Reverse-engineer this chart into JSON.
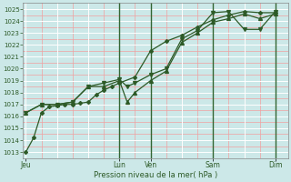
{
  "xlabel": "Pression niveau de la mer( hPa )",
  "bg_color": "#cce8e8",
  "grid_major_color": "#ffffff",
  "grid_minor_color": "#f0a0a0",
  "line_color": "#2d5a27",
  "sep_color": "#336633",
  "ylim": [
    1012.5,
    1025.5
  ],
  "yticks": [
    1013,
    1014,
    1015,
    1016,
    1017,
    1018,
    1019,
    1020,
    1021,
    1022,
    1023,
    1024,
    1025
  ],
  "day_labels": [
    "Jeu",
    "",
    "",
    "Lun",
    "Ven",
    "",
    "Sam",
    "",
    "Dim"
  ],
  "day_positions": [
    0.0,
    1.0,
    2.0,
    3.0,
    4.0,
    5.0,
    6.0,
    7.0,
    8.0
  ],
  "show_label": [
    true,
    false,
    false,
    true,
    true,
    false,
    true,
    false,
    true
  ],
  "xlim": [
    -0.1,
    8.4
  ],
  "series1_x": [
    0.0,
    0.25,
    0.5,
    0.75,
    1.0,
    1.25,
    1.5,
    1.75,
    2.0,
    2.25,
    2.5,
    2.75,
    3.0,
    3.5,
    4.0,
    4.5,
    5.0,
    5.5,
    6.0,
    6.5,
    7.0,
    7.5,
    8.0
  ],
  "series1_y": [
    1013.0,
    1014.2,
    1016.3,
    1016.8,
    1016.9,
    1017.0,
    1017.0,
    1017.1,
    1017.2,
    1017.8,
    1018.2,
    1018.5,
    1018.8,
    1019.3,
    1021.5,
    1022.3,
    1022.8,
    1023.5,
    1024.1,
    1024.5,
    1024.8,
    1024.7,
    1024.7
  ],
  "series2_x": [
    0.0,
    0.5,
    1.0,
    1.5,
    2.0,
    2.5,
    3.0,
    3.25,
    3.5,
    4.0,
    4.5,
    5.0,
    5.5,
    6.0,
    6.5,
    7.0,
    7.5,
    8.0
  ],
  "series2_y": [
    1016.3,
    1017.0,
    1017.0,
    1017.2,
    1018.5,
    1018.5,
    1019.0,
    1017.2,
    1018.0,
    1019.0,
    1019.8,
    1022.2,
    1023.0,
    1023.9,
    1024.2,
    1024.6,
    1024.2,
    1024.6
  ],
  "series3_x": [
    0.0,
    0.5,
    1.0,
    1.5,
    2.0,
    2.5,
    3.0,
    3.25,
    3.5,
    4.0,
    4.5,
    5.0,
    5.5,
    6.0,
    6.5,
    7.0,
    7.5,
    8.0
  ],
  "series3_y": [
    1016.3,
    1017.0,
    1017.0,
    1017.2,
    1018.5,
    1018.8,
    1019.1,
    1018.5,
    1018.8,
    1019.5,
    1020.0,
    1022.5,
    1023.2,
    1024.7,
    1024.8,
    1023.3,
    1023.3,
    1024.8
  ]
}
